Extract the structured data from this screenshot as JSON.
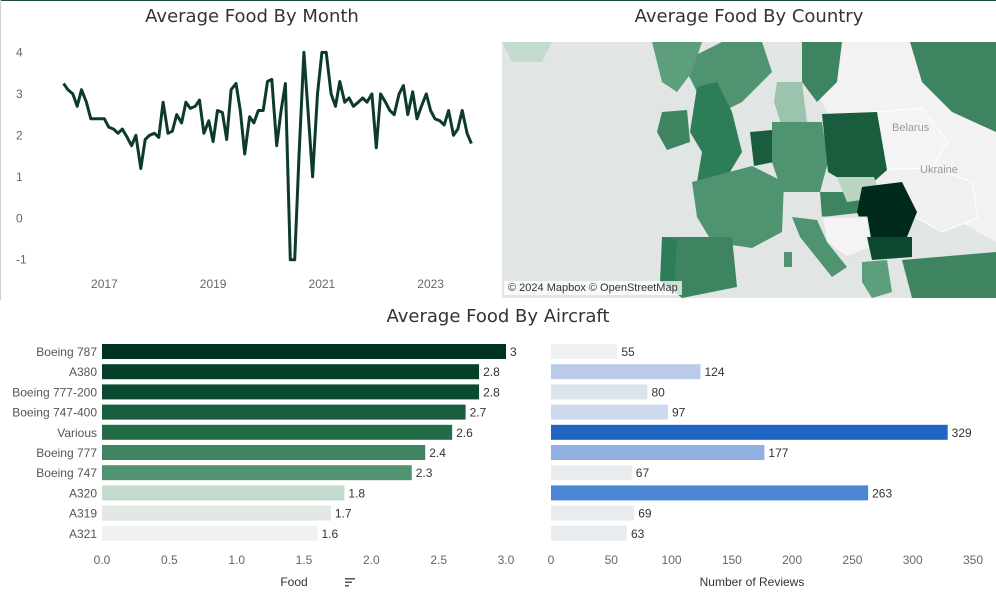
{
  "titles": {
    "line": "Average Food By Month",
    "map": "Average Food By Country",
    "bars": "Average Food By Aircraft"
  },
  "map": {
    "labels": [
      "Belarus",
      "Ukraine"
    ],
    "attribution": "© 2024 Mapbox © OpenStreetMap",
    "colors": {
      "water": "#e1e6e4",
      "land_light": "#f0f0f0",
      "high": "#002a1c",
      "mid": "#2e7d59",
      "low": "#c6ddd1"
    }
  },
  "chart_data": [
    {
      "type": "line",
      "title": "Average Food By Month",
      "xlabel": "",
      "ylabel": "",
      "x_ticks": [
        "2017",
        "2019",
        "2021",
        "2023"
      ],
      "y_ticks": [
        4,
        3,
        2,
        1,
        0,
        -1
      ],
      "ylim": [
        -1.2,
        4.3
      ],
      "xlim": [
        2016.0,
        2024.0
      ],
      "color": "#0d3b2a",
      "x": [
        2016.25,
        2016.33,
        2016.42,
        2016.5,
        2016.58,
        2016.67,
        2016.75,
        2016.83,
        2016.92,
        2017.0,
        2017.08,
        2017.17,
        2017.25,
        2017.33,
        2017.42,
        2017.5,
        2017.58,
        2017.67,
        2017.75,
        2017.83,
        2017.92,
        2018.0,
        2018.08,
        2018.17,
        2018.25,
        2018.33,
        2018.42,
        2018.5,
        2018.58,
        2018.67,
        2018.75,
        2018.83,
        2018.92,
        2019.0,
        2019.08,
        2019.17,
        2019.25,
        2019.33,
        2019.42,
        2019.5,
        2019.58,
        2019.67,
        2019.75,
        2019.83,
        2019.92,
        2020.0,
        2020.08,
        2020.17,
        2020.25,
        2020.33,
        2020.42,
        2020.5,
        2020.58,
        2020.67,
        2020.75,
        2020.83,
        2020.92,
        2021.0,
        2021.08,
        2021.17,
        2021.25,
        2021.33,
        2021.42,
        2021.5,
        2021.58,
        2021.67,
        2021.75,
        2021.83,
        2021.92,
        2022.0,
        2022.08,
        2022.17,
        2022.25,
        2022.33,
        2022.42,
        2022.5,
        2022.58,
        2022.67,
        2022.75,
        2022.83,
        2022.92,
        2023.0,
        2023.08,
        2023.17,
        2023.25,
        2023.33,
        2023.42,
        2023.5,
        2023.58,
        2023.67,
        2023.75
      ],
      "y": [
        3.25,
        3.1,
        3.0,
        2.7,
        3.1,
        2.8,
        2.4,
        2.4,
        2.4,
        2.4,
        2.2,
        2.15,
        2.05,
        2.15,
        1.95,
        1.75,
        2.0,
        1.2,
        1.9,
        2.0,
        2.05,
        1.95,
        2.8,
        2.05,
        2.1,
        2.5,
        2.3,
        2.8,
        2.65,
        2.7,
        2.85,
        2.05,
        2.35,
        1.85,
        2.6,
        2.55,
        1.9,
        3.1,
        3.25,
        2.6,
        1.55,
        2.45,
        2.3,
        2.6,
        2.6,
        3.3,
        3.35,
        1.75,
        2.6,
        3.25,
        -1.0,
        -1.0,
        1.5,
        4.0,
        2.5,
        1.0,
        3.0,
        4.0,
        4.0,
        3.0,
        2.7,
        3.3,
        2.8,
        2.9,
        2.7,
        2.8,
        2.9,
        2.8,
        3.0,
        1.7,
        3.0,
        2.8,
        2.6,
        2.5,
        3.0,
        3.2,
        2.5,
        3.05,
        2.4,
        2.7,
        3.0,
        2.6,
        2.4,
        2.35,
        2.25,
        2.6,
        2.0,
        2.15,
        2.6,
        2.05,
        1.8
      ]
    },
    {
      "type": "bar",
      "orientation": "horizontal",
      "title": "Average Food By Aircraft",
      "categories": [
        "Boeing 787",
        "A380",
        "Boeing 777-200",
        "Boeing 747-400",
        "Various",
        "Boeing 777",
        "Boeing 747",
        "A320",
        "A319",
        "A321"
      ],
      "values": [
        3.0,
        2.8,
        2.8,
        2.7,
        2.6,
        2.4,
        2.3,
        1.8,
        1.7,
        1.6
      ],
      "colors": [
        "#00331f",
        "#053f28",
        "#0b4a31",
        "#1a5c3e",
        "#246b48",
        "#3e8460",
        "#4f9370",
        "#c2dbcd",
        "#e3e8e5",
        "#f1f1f1"
      ],
      "xlabel": "Food",
      "xlim": [
        0,
        3.0
      ],
      "x_ticks": [
        "0.0",
        "0.5",
        "1.0",
        "1.5",
        "2.0",
        "2.5",
        "3.0"
      ]
    },
    {
      "type": "bar",
      "orientation": "horizontal",
      "title": "",
      "categories": [
        "Boeing 787",
        "A380",
        "Boeing 777-200",
        "Boeing 747-400",
        "Various",
        "Boeing 777",
        "Boeing 747",
        "A320",
        "A319",
        "A321"
      ],
      "values": [
        55,
        124,
        80,
        97,
        329,
        177,
        67,
        263,
        69,
        63
      ],
      "colors": [
        "#eef0f2",
        "#b9cbe8",
        "#dde3ec",
        "#cdd9ec",
        "#1f66c2",
        "#8fb0e0",
        "#e9ecef",
        "#4a85d6",
        "#e9ecef",
        "#e9ecef"
      ],
      "xlabel": "Number of Reviews",
      "xlim": [
        0,
        350
      ],
      "x_ticks": [
        "0",
        "50",
        "100",
        "150",
        "200",
        "250",
        "300",
        "350"
      ]
    }
  ]
}
